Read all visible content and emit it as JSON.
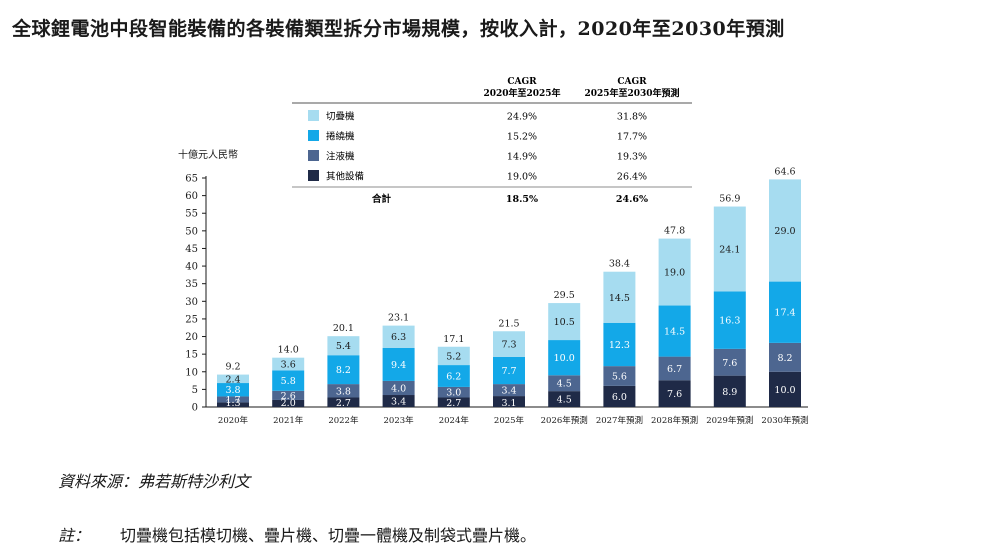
{
  "title": "全球鋰電池中段智能裝備的各裝備類型拆分市場規模，按收入計，2020年至2030年預測",
  "source": "資料來源：弗若斯特沙利文",
  "note_label": "註：",
  "note_text": "切疊機包括模切機、疊片機、切疊一體機及制袋式疊片機。",
  "colors": {
    "cut_stack": "#a6dcf0",
    "winding": "#13a8e8",
    "injection": "#4d6690",
    "other": "#1f2a47"
  },
  "chart_data": {
    "type": "bar",
    "stacked": true,
    "ylabel": "十億元人民幣",
    "ylim": [
      0,
      65
    ],
    "yticks": [
      0,
      5,
      10,
      15,
      20,
      25,
      30,
      35,
      40,
      45,
      50,
      55,
      60,
      65
    ],
    "categories": [
      "2020年",
      "2021年",
      "2022年",
      "2023年",
      "2024年",
      "2025年",
      "2026年預測",
      "2027年預測",
      "2028年預測",
      "2029年預測",
      "2030年預測"
    ],
    "series": [
      {
        "name": "其他設備",
        "key": "other",
        "values": [
          1.3,
          2.0,
          2.7,
          3.4,
          2.7,
          3.1,
          4.5,
          6.0,
          7.6,
          8.9,
          10.0
        ]
      },
      {
        "name": "注液機",
        "key": "injection",
        "values": [
          1.7,
          2.6,
          3.8,
          4.0,
          3.0,
          3.4,
          4.5,
          5.6,
          6.7,
          7.6,
          8.2
        ]
      },
      {
        "name": "捲繞機",
        "key": "winding",
        "values": [
          3.8,
          5.8,
          8.2,
          9.4,
          6.2,
          7.7,
          10.0,
          12.3,
          14.5,
          16.3,
          17.4
        ]
      },
      {
        "name": "切疊機",
        "key": "cut_stack",
        "values": [
          2.4,
          3.6,
          5.4,
          6.3,
          5.2,
          7.3,
          10.5,
          14.5,
          19.0,
          24.1,
          29.0
        ]
      }
    ],
    "totals": [
      9.2,
      14.0,
      20.1,
      23.1,
      17.1,
      21.5,
      29.5,
      38.4,
      47.8,
      56.9,
      64.6
    ],
    "legend": {
      "placement": "top",
      "header_col1": [
        "CAGR",
        "2020年至2025年"
      ],
      "header_col2": [
        "CAGR",
        "2025年至2030年預測"
      ],
      "rows": [
        {
          "name": "切疊機",
          "key": "cut_stack",
          "cagr1": "24.9%",
          "cagr2": "31.8%"
        },
        {
          "name": "捲繞機",
          "key": "winding",
          "cagr1": "15.2%",
          "cagr2": "17.7%"
        },
        {
          "name": "注液機",
          "key": "injection",
          "cagr1": "14.9%",
          "cagr2": "19.3%"
        },
        {
          "name": "其他設備",
          "key": "other",
          "cagr1": "19.0%",
          "cagr2": "26.4%"
        }
      ],
      "total_row": {
        "name": "合計",
        "cagr1": "18.5%",
        "cagr2": "24.6%"
      }
    }
  }
}
